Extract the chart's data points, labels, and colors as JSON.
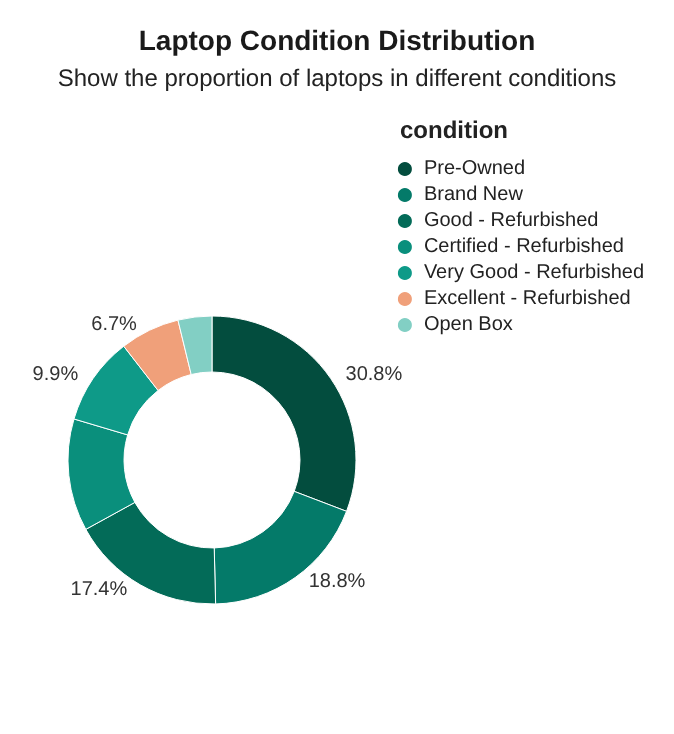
{
  "chart_data": {
    "type": "donut",
    "title": "Laptop Condition Distribution",
    "subtitle": "Show the proportion of laptops in different conditions",
    "legend_title": "condition",
    "categories": [
      "Pre-Owned",
      "Brand New",
      "Good - Refurbished",
      "Certified - Refurbished",
      "Very Good - Refurbished",
      "Excellent - Refurbished",
      "Open Box"
    ],
    "values": [
      30.8,
      18.8,
      17.4,
      12.6,
      9.9,
      6.7,
      3.8
    ],
    "colors": [
      "#034d3e",
      "#047a69",
      "#036b58",
      "#0a8f7c",
      "#0e9a88",
      "#f0a07a",
      "#82cfc4"
    ],
    "value_labels": [
      "30.8%",
      "18.8%",
      "17.4%",
      null,
      "9.9%",
      "6.7%",
      null
    ],
    "legend": "top right"
  }
}
